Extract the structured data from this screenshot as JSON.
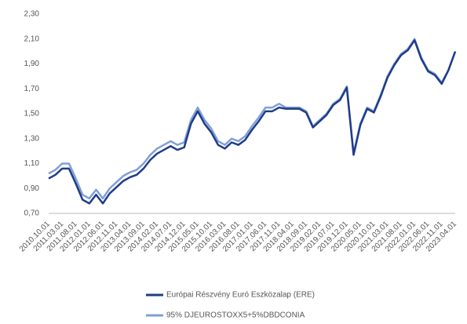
{
  "chart_data": {
    "type": "line",
    "categories": [
      "2010.10.01",
      null,
      "2011.03.01",
      null,
      "2011.08.01",
      null,
      "2012.01.01",
      null,
      "2012.06.01",
      null,
      "2012.11.01",
      null,
      "2013.04.01",
      null,
      "2013.09.01",
      null,
      "2014.02.01",
      null,
      "2014.07.01",
      null,
      "2014.12.01",
      null,
      "2015.05.01",
      null,
      "2015.10.01",
      null,
      "2016.03.01",
      null,
      "2016.08.01",
      null,
      "2017.01.01",
      null,
      "2017.06.01",
      null,
      "2017.11.01",
      null,
      "2018.04.01",
      null,
      "2018.09.01",
      null,
      "2019.02.01",
      null,
      "2019.07.01",
      null,
      "2019.12.01",
      null,
      "2020.05.01",
      null,
      "2020.10.01",
      null,
      "2021.03.01",
      null,
      "2021.08.01",
      null,
      "2022.01.01",
      null,
      "2022.06.01",
      null,
      "2022.11.01",
      null,
      "2023.04.01"
    ],
    "series": [
      {
        "name": "Európai Részvény Euró Eszközalap (ERE)",
        "color": "#1f3c88",
        "values": [
          0.98,
          1.01,
          1.06,
          1.06,
          0.94,
          0.81,
          0.78,
          0.85,
          0.78,
          0.86,
          0.91,
          0.96,
          0.99,
          1.01,
          1.06,
          1.13,
          1.18,
          1.21,
          1.24,
          1.21,
          1.23,
          1.42,
          1.52,
          1.42,
          1.35,
          1.25,
          1.22,
          1.27,
          1.25,
          1.29,
          1.37,
          1.44,
          1.52,
          1.52,
          1.55,
          1.54,
          1.54,
          1.54,
          1.51,
          1.39,
          1.44,
          1.49,
          1.57,
          1.61,
          1.71,
          1.17,
          1.41,
          1.54,
          1.51,
          1.64,
          1.79,
          1.89,
          1.97,
          2.01,
          2.09,
          1.94,
          1.84,
          1.81,
          1.74,
          1.85,
          2.0
        ]
      },
      {
        "name": "95% DJEUROSTOXX5+5%DBDCONIA",
        "color": "#7f9fd6",
        "values": [
          1.02,
          1.05,
          1.1,
          1.1,
          0.98,
          0.85,
          0.82,
          0.89,
          0.82,
          0.9,
          0.95,
          1.0,
          1.03,
          1.05,
          1.1,
          1.17,
          1.22,
          1.25,
          1.28,
          1.25,
          1.27,
          1.45,
          1.55,
          1.45,
          1.38,
          1.28,
          1.25,
          1.3,
          1.28,
          1.32,
          1.4,
          1.47,
          1.55,
          1.55,
          1.58,
          1.55,
          1.55,
          1.55,
          1.52,
          1.4,
          1.45,
          1.5,
          1.58,
          1.62,
          1.72,
          1.18,
          1.42,
          1.55,
          1.52,
          1.65,
          1.8,
          1.9,
          1.98,
          2.02,
          2.1,
          1.95,
          1.85,
          1.82,
          1.75,
          1.85,
          2.0
        ]
      }
    ],
    "ylim": [
      0.7,
      2.3
    ],
    "yticks": [
      {
        "value": 0.7,
        "label": "0,70"
      },
      {
        "value": 0.9,
        "label": "0,90"
      },
      {
        "value": 1.1,
        "label": "1,10"
      },
      {
        "value": 1.3,
        "label": "1,30"
      },
      {
        "value": 1.5,
        "label": "1,50"
      },
      {
        "value": 1.7,
        "label": "1,70"
      },
      {
        "value": 1.9,
        "label": "1,90"
      },
      {
        "value": 2.1,
        "label": "2,10"
      },
      {
        "value": 2.3,
        "label": "2,30"
      }
    ],
    "grid": false,
    "legend": "bottom"
  }
}
